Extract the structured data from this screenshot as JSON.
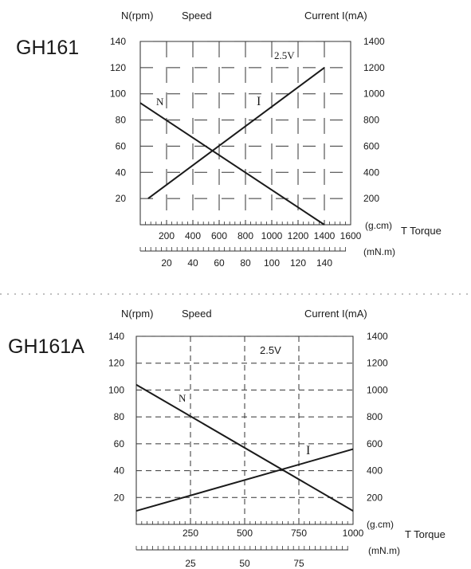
{
  "chart_data": [
    {
      "type": "line",
      "model": "GH161",
      "left_axis_label": "N(rpm)",
      "left_axis_title": "Speed",
      "right_axis_label": "Current I(mA)",
      "voltage_label": "2.5V",
      "x_unit_primary": "(g.cm)",
      "x_unit_secondary": "(mN.m)",
      "x_title": "T Torque",
      "left_ticks": [
        "20",
        "40",
        "60",
        "80",
        "100",
        "120",
        "140"
      ],
      "right_ticks": [
        "200",
        "400",
        "600",
        "800",
        "1000",
        "1200",
        "1400"
      ],
      "x_ticks_primary": [
        "200",
        "400",
        "600",
        "800",
        "1000",
        "1200",
        "1400",
        "1600"
      ],
      "x_ticks_secondary": [
        "20",
        "40",
        "60",
        "80",
        "100",
        "120",
        "140"
      ],
      "ylim_left": [
        0,
        140
      ],
      "ylim_right": [
        0,
        1400
      ],
      "xlim": [
        0,
        1600
      ],
      "grid": "solid-segments",
      "series": [
        {
          "name": "N",
          "axis": "left",
          "x": [
            0,
            1400
          ],
          "y": [
            93,
            0
          ]
        },
        {
          "name": "I",
          "axis": "right",
          "x": [
            60,
            1400
          ],
          "y": [
            200,
            1200
          ]
        }
      ]
    },
    {
      "type": "line",
      "model": "GH161A",
      "left_axis_label": "N(rpm)",
      "left_axis_title": "Speed",
      "right_axis_label": "Current I(mA)",
      "voltage_label": "2.5V",
      "x_unit_primary": "(g.cm)",
      "x_unit_secondary": "(mN.m)",
      "x_title": "T Torque",
      "left_ticks": [
        "20",
        "40",
        "60",
        "80",
        "100",
        "120",
        "140"
      ],
      "right_ticks": [
        "200",
        "400",
        "600",
        "800",
        "1000",
        "1200",
        "1400"
      ],
      "x_ticks_primary": [
        "250",
        "500",
        "750",
        "1000"
      ],
      "x_ticks_secondary": [
        "25",
        "50",
        "75"
      ],
      "ylim_left": [
        0,
        140
      ],
      "ylim_right": [
        0,
        1400
      ],
      "xlim": [
        0,
        1000
      ],
      "grid": "dashed",
      "series": [
        {
          "name": "N",
          "axis": "left",
          "x": [
            0,
            1000
          ],
          "y": [
            104,
            10
          ]
        },
        {
          "name": "I",
          "axis": "right",
          "x": [
            0,
            1000
          ],
          "y": [
            100,
            560
          ]
        }
      ]
    }
  ]
}
